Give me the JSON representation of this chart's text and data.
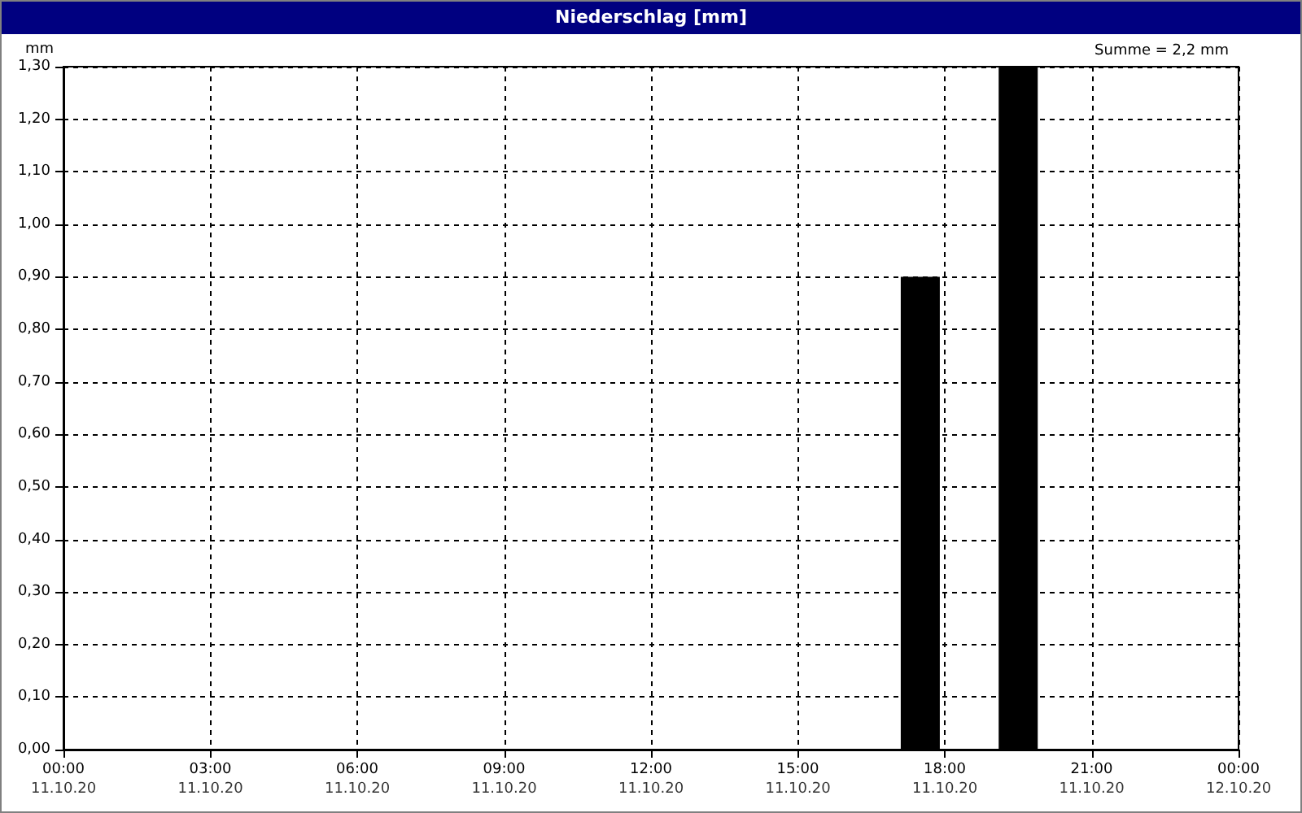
{
  "chart_data": {
    "type": "bar",
    "title": "Niederschlag [mm]",
    "ylabel": "mm",
    "annotations": [
      "Summe = 2,2 mm",
      "11.10.20",
      "11.10.20",
      "11.10.20",
      "11.10.20",
      "11.10.20",
      "11.10.20",
      "11.10.20",
      "11.10.20",
      "12.10.20"
    ],
    "x": [
      17.5,
      19.5
    ],
    "series": [
      {
        "color": "#000000",
        "values": [
          0.9,
          1.3
        ]
      }
    ],
    "xlim": [
      0,
      24
    ],
    "xticks": [
      {
        "value": 0,
        "label": "00:00"
      },
      {
        "value": 3,
        "label": "03:00"
      },
      {
        "value": 6,
        "label": "06:00"
      },
      {
        "value": 9,
        "label": "09:00"
      },
      {
        "value": 12,
        "label": "12:00"
      },
      {
        "value": 15,
        "label": "15:00"
      },
      {
        "value": 18,
        "label": "18:00"
      },
      {
        "value": 21,
        "label": "21:00"
      },
      {
        "value": 24,
        "label": "00:00"
      }
    ],
    "ylim": [
      0,
      1.3
    ],
    "yticks": [
      {
        "value": 0,
        "label": "0,00"
      },
      {
        "value": 0.1,
        "label": "0,10"
      },
      {
        "value": 0.2,
        "label": "0,20"
      },
      {
        "value": 0.3,
        "label": "0,30"
      },
      {
        "value": 0.4,
        "label": "0,40"
      },
      {
        "value": 0.5,
        "label": "0,50"
      },
      {
        "value": 0.6,
        "label": "0,60"
      },
      {
        "value": 0.7,
        "label": "0,70"
      },
      {
        "value": 0.8,
        "label": "0,80"
      },
      {
        "value": 0.9,
        "label": "0,90"
      },
      {
        "value": 1,
        "label": "1,00"
      },
      {
        "value": 1.1,
        "label": "1,10"
      },
      {
        "value": 1.2,
        "label": "1,20"
      },
      {
        "value": 1.3,
        "label": "1,30"
      }
    ],
    "grid": true
  }
}
